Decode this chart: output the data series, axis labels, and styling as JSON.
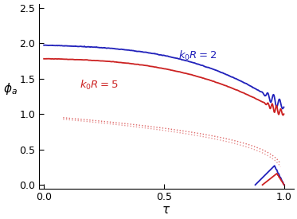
{
  "title": "",
  "xlabel": "$\\tau$",
  "ylabel": "$\\phi_a$",
  "xlim": [
    -0.02,
    1.04
  ],
  "ylim": [
    -0.05,
    2.55
  ],
  "xticks": [
    0.0,
    0.5,
    1.0
  ],
  "yticks": [
    0.0,
    0.5,
    1.0,
    1.5,
    2.0,
    2.5
  ],
  "color_blue": "#2222bb",
  "color_red": "#cc2222",
  "color_dot_blue": "#6666cc",
  "color_dot_red": "#dd6666",
  "label_k0R2": "$k_0R = 2$",
  "label_k0R5": "$k_0R = 5$",
  "figsize": [
    3.73,
    2.75
  ],
  "dpi": 100,
  "background_color": "#ffffff"
}
